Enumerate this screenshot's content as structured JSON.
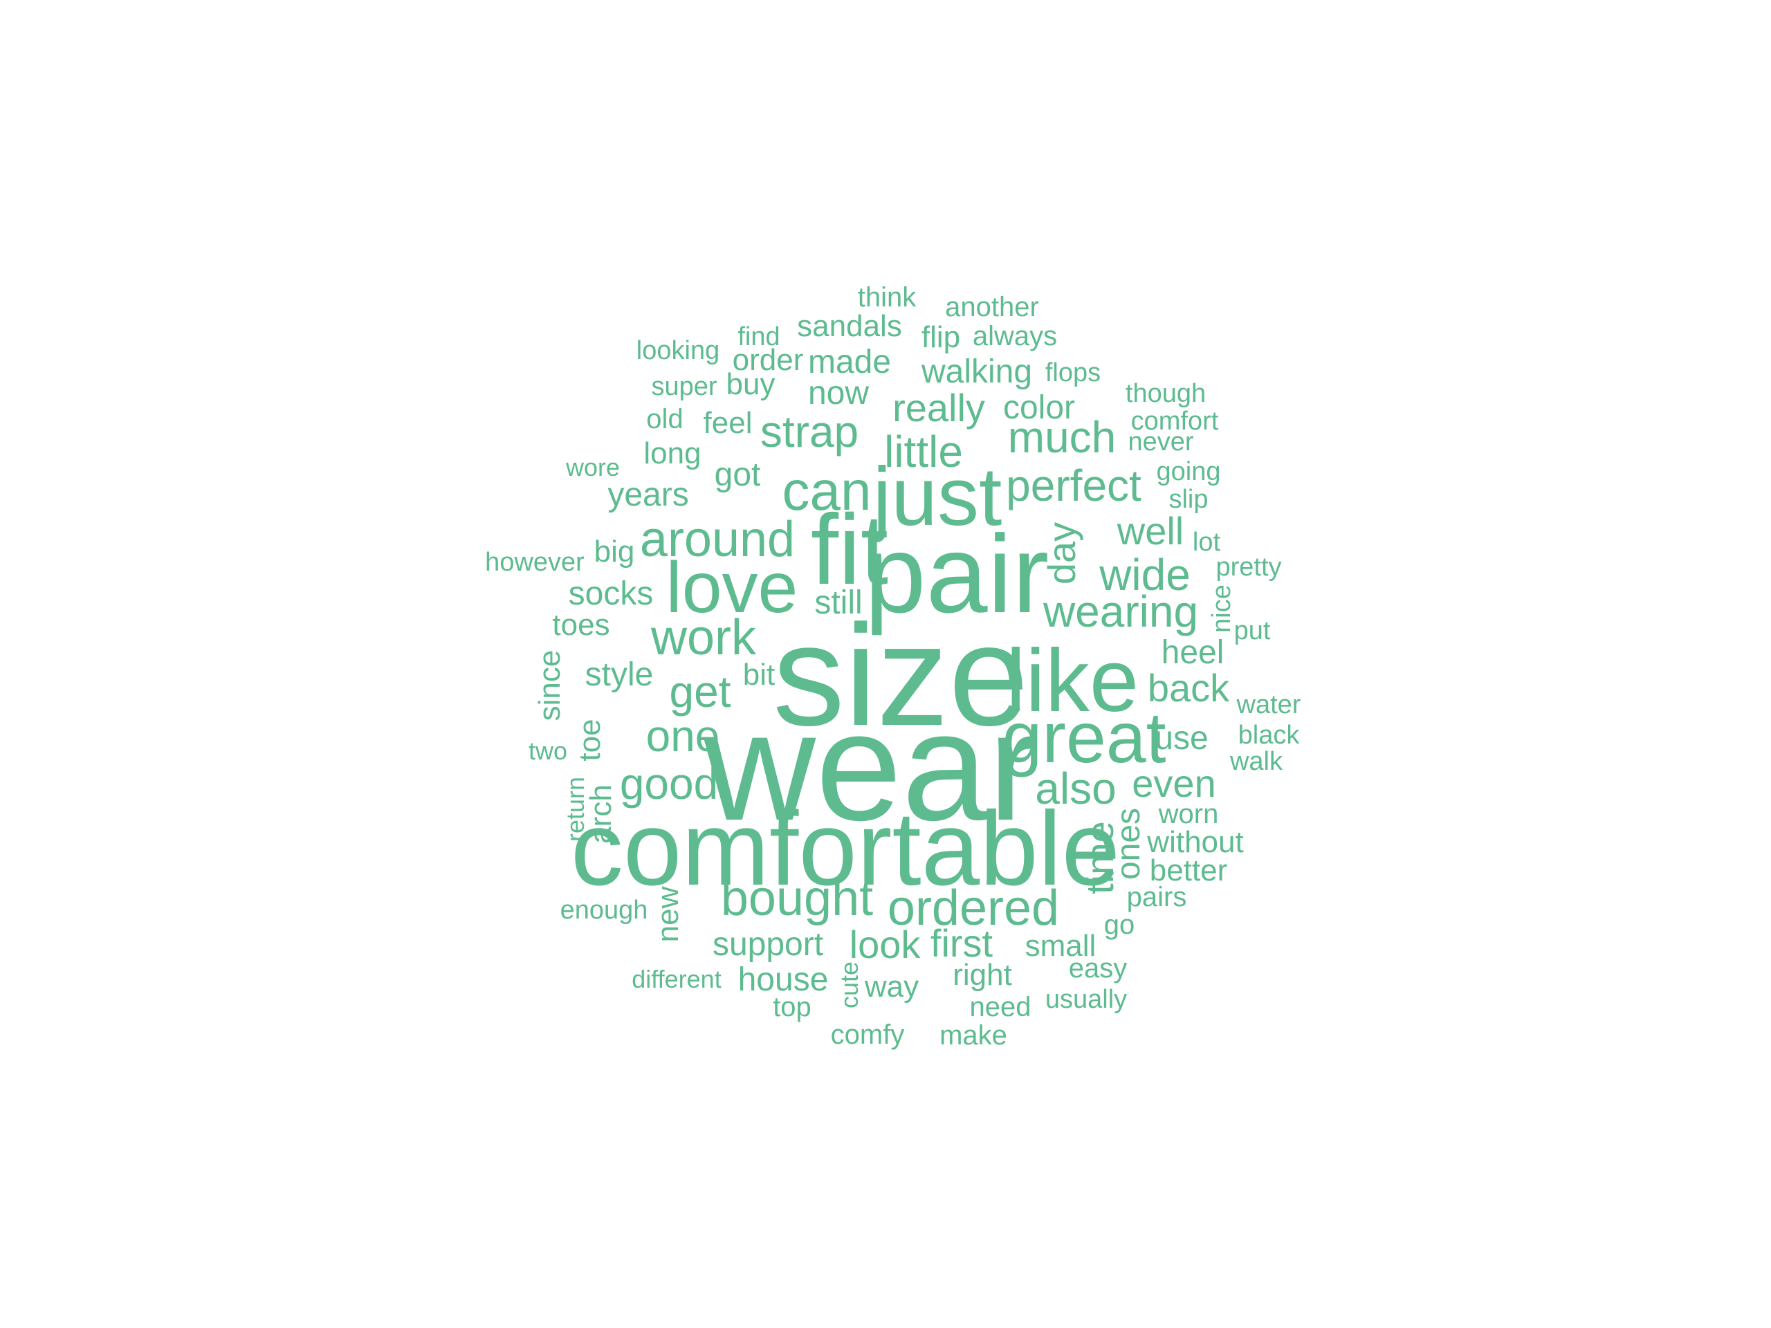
{
  "colors": {
    "background": "#ffffff",
    "word": "#5dbb8f"
  },
  "words": [
    {
      "id": "wear",
      "text": "wear"
    },
    {
      "id": "size",
      "text": "size"
    },
    {
      "id": "pair",
      "text": "pair"
    },
    {
      "id": "comfortable",
      "text": "comfortable"
    },
    {
      "id": "fit",
      "text": "fit"
    },
    {
      "id": "like",
      "text": "like"
    },
    {
      "id": "just",
      "text": "just"
    },
    {
      "id": "love",
      "text": "love"
    },
    {
      "id": "great",
      "text": "great"
    },
    {
      "id": "can",
      "text": "can"
    },
    {
      "id": "around",
      "text": "around"
    },
    {
      "id": "work",
      "text": "work"
    },
    {
      "id": "bought",
      "text": "bought"
    },
    {
      "id": "ordered",
      "text": "ordered"
    },
    {
      "id": "wearing",
      "text": "wearing"
    },
    {
      "id": "perfect",
      "text": "perfect"
    },
    {
      "id": "little",
      "text": "little"
    },
    {
      "id": "much",
      "text": "much"
    },
    {
      "id": "get",
      "text": "get"
    },
    {
      "id": "strap",
      "text": "strap"
    },
    {
      "id": "good",
      "text": "good"
    },
    {
      "id": "one",
      "text": "one"
    },
    {
      "id": "wide",
      "text": "wide"
    },
    {
      "id": "also",
      "text": "also"
    },
    {
      "id": "day",
      "text": "day"
    },
    {
      "id": "time",
      "text": "time"
    },
    {
      "id": "really",
      "text": "really"
    },
    {
      "id": "back",
      "text": "back"
    },
    {
      "id": "even",
      "text": "even"
    },
    {
      "id": "well",
      "text": "well"
    },
    {
      "id": "look",
      "text": "look"
    },
    {
      "id": "first",
      "text": "first"
    },
    {
      "id": "support",
      "text": "support"
    },
    {
      "id": "color",
      "text": "color"
    },
    {
      "id": "now",
      "text": "now"
    },
    {
      "id": "got",
      "text": "got"
    },
    {
      "id": "years",
      "text": "years"
    },
    {
      "id": "socks",
      "text": "socks"
    },
    {
      "id": "style",
      "text": "style"
    },
    {
      "id": "still",
      "text": "still"
    },
    {
      "id": "heel",
      "text": "heel"
    },
    {
      "id": "house",
      "text": "house"
    },
    {
      "id": "walking",
      "text": "walking"
    },
    {
      "id": "made",
      "text": "made"
    },
    {
      "id": "ones",
      "text": "ones"
    },
    {
      "id": "use",
      "text": "use"
    },
    {
      "id": "feel",
      "text": "feel"
    },
    {
      "id": "sandals",
      "text": "sandals"
    },
    {
      "id": "long",
      "text": "long"
    },
    {
      "id": "toes",
      "text": "toes"
    },
    {
      "id": "bit",
      "text": "bit"
    },
    {
      "id": "order",
      "text": "order"
    },
    {
      "id": "buy",
      "text": "buy"
    },
    {
      "id": "big",
      "text": "big"
    },
    {
      "id": "way",
      "text": "way"
    },
    {
      "id": "right",
      "text": "right"
    },
    {
      "id": "small",
      "text": "small"
    },
    {
      "id": "without",
      "text": "without"
    },
    {
      "id": "toe",
      "text": "toe"
    },
    {
      "id": "since",
      "text": "since"
    },
    {
      "id": "arch",
      "text": "arch"
    },
    {
      "id": "new",
      "text": "new"
    },
    {
      "id": "better",
      "text": "better"
    },
    {
      "id": "flip",
      "text": "flip"
    },
    {
      "id": "always",
      "text": "always"
    },
    {
      "id": "old",
      "text": "old"
    },
    {
      "id": "top",
      "text": "top"
    },
    {
      "id": "go",
      "text": "go"
    },
    {
      "id": "comfy",
      "text": "comfy"
    },
    {
      "id": "make",
      "text": "make"
    },
    {
      "id": "need",
      "text": "need"
    },
    {
      "id": "worn",
      "text": "worn"
    },
    {
      "id": "pairs",
      "text": "pairs"
    },
    {
      "id": "easy",
      "text": "easy"
    },
    {
      "id": "think",
      "text": "think"
    },
    {
      "id": "another",
      "text": "another"
    },
    {
      "id": "find",
      "text": "find"
    },
    {
      "id": "looking",
      "text": "looking"
    },
    {
      "id": "super",
      "text": "super"
    },
    {
      "id": "flops",
      "text": "flops"
    },
    {
      "id": "though",
      "text": "though"
    },
    {
      "id": "comfort",
      "text": "comfort"
    },
    {
      "id": "never",
      "text": "never"
    },
    {
      "id": "going",
      "text": "going"
    },
    {
      "id": "slip",
      "text": "slip"
    },
    {
      "id": "lot",
      "text": "lot"
    },
    {
      "id": "pretty",
      "text": "pretty"
    },
    {
      "id": "nice",
      "text": "nice"
    },
    {
      "id": "put",
      "text": "put"
    },
    {
      "id": "water",
      "text": "water"
    },
    {
      "id": "black",
      "text": "black"
    },
    {
      "id": "walk",
      "text": "walk"
    },
    {
      "id": "wore",
      "text": "wore"
    },
    {
      "id": "however",
      "text": "however"
    },
    {
      "id": "two",
      "text": "two"
    },
    {
      "id": "return",
      "text": "return"
    },
    {
      "id": "enough",
      "text": "enough"
    },
    {
      "id": "different",
      "text": "different"
    },
    {
      "id": "cute",
      "text": "cute"
    },
    {
      "id": "usually",
      "text": "usually"
    }
  ]
}
